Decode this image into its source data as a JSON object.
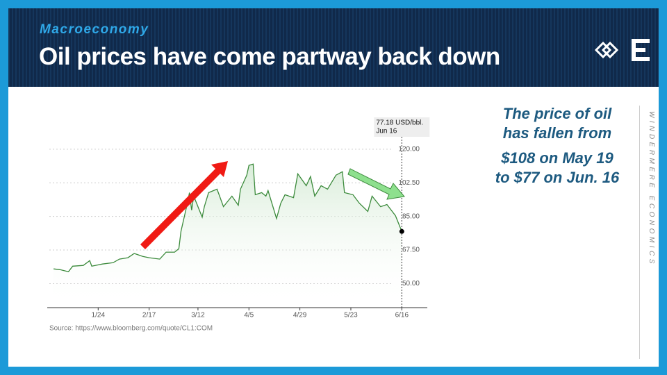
{
  "header": {
    "kicker": "Macroeconomy",
    "title": "Oil prices have come partway back down"
  },
  "chart_data": {
    "type": "line",
    "x": [
      "1/3",
      "1/6",
      "1/10",
      "1/12",
      "1/17",
      "1/20",
      "1/21",
      "1/26",
      "1/31",
      "2/3",
      "2/7",
      "2/10",
      "2/14",
      "2/17",
      "2/22",
      "2/25",
      "3/1",
      "3/3",
      "3/4",
      "3/7",
      "3/8",
      "3/9",
      "3/10",
      "3/14",
      "3/15",
      "3/17",
      "3/21",
      "3/24",
      "3/28",
      "3/31",
      "4/1",
      "4/4",
      "4/5",
      "4/7",
      "4/8",
      "4/11",
      "4/13",
      "4/14",
      "4/18",
      "4/20",
      "4/22",
      "4/26",
      "4/28",
      "5/2",
      "5/4",
      "5/6",
      "5/9",
      "5/12",
      "5/16",
      "5/19",
      "5/20",
      "5/24",
      "5/27",
      "5/31",
      "6/2",
      "6/6",
      "6/9",
      "6/13",
      "6/16"
    ],
    "series": [
      {
        "name": "Oil",
        "color": "#3b8a3b",
        "values": [
          57.7,
          57.3,
          56.2,
          59.1,
          59.5,
          62.0,
          59.1,
          60.2,
          60.9,
          62.8,
          63.5,
          65.7,
          64.2,
          63.5,
          62.8,
          66.4,
          66.4,
          68.2,
          77.3,
          91.9,
          97.4,
          88.3,
          95.6,
          84.6,
          90.1,
          97.4,
          99.2,
          90.1,
          95.6,
          90.8,
          99.2,
          106.5,
          111.6,
          112.3,
          96.3,
          97.4,
          95.6,
          98.5,
          83.9,
          91.9,
          96.3,
          94.8,
          107.2,
          101.0,
          105.8,
          95.6,
          101.0,
          99.2,
          106.5,
          108.3,
          97.4,
          96.3,
          91.9,
          87.6,
          95.6,
          90.1,
          91.2,
          85.4,
          77.18
        ]
      }
    ],
    "xlim": [
      "1/1",
      "6/28"
    ],
    "xticks": [
      "1/24",
      "2/17",
      "3/12",
      "4/5",
      "4/29",
      "5/23",
      "6/16"
    ],
    "ylim": [
      37.5,
      122.5
    ],
    "yticks": [
      {
        "value": 50,
        "label": "50.00"
      },
      {
        "value": 67.5,
        "label": "67.50"
      },
      {
        "value": 85,
        "label": "85.00"
      },
      {
        "value": 102.5,
        "label": "102.50"
      },
      {
        "value": 120,
        "label": "120.00"
      }
    ],
    "grid": true,
    "tooltip": {
      "label": "77.18 USD/bbl.",
      "date": "Jun 16"
    },
    "source": "Source: https://www.bloomberg.com/quote/CL1:COM"
  },
  "callout": [
    "The price of oil",
    "has fallen from",
    "$108 on May 19",
    "to $77 on Jun. 16"
  ],
  "brand": "WINDERMERE ECONOMICS"
}
